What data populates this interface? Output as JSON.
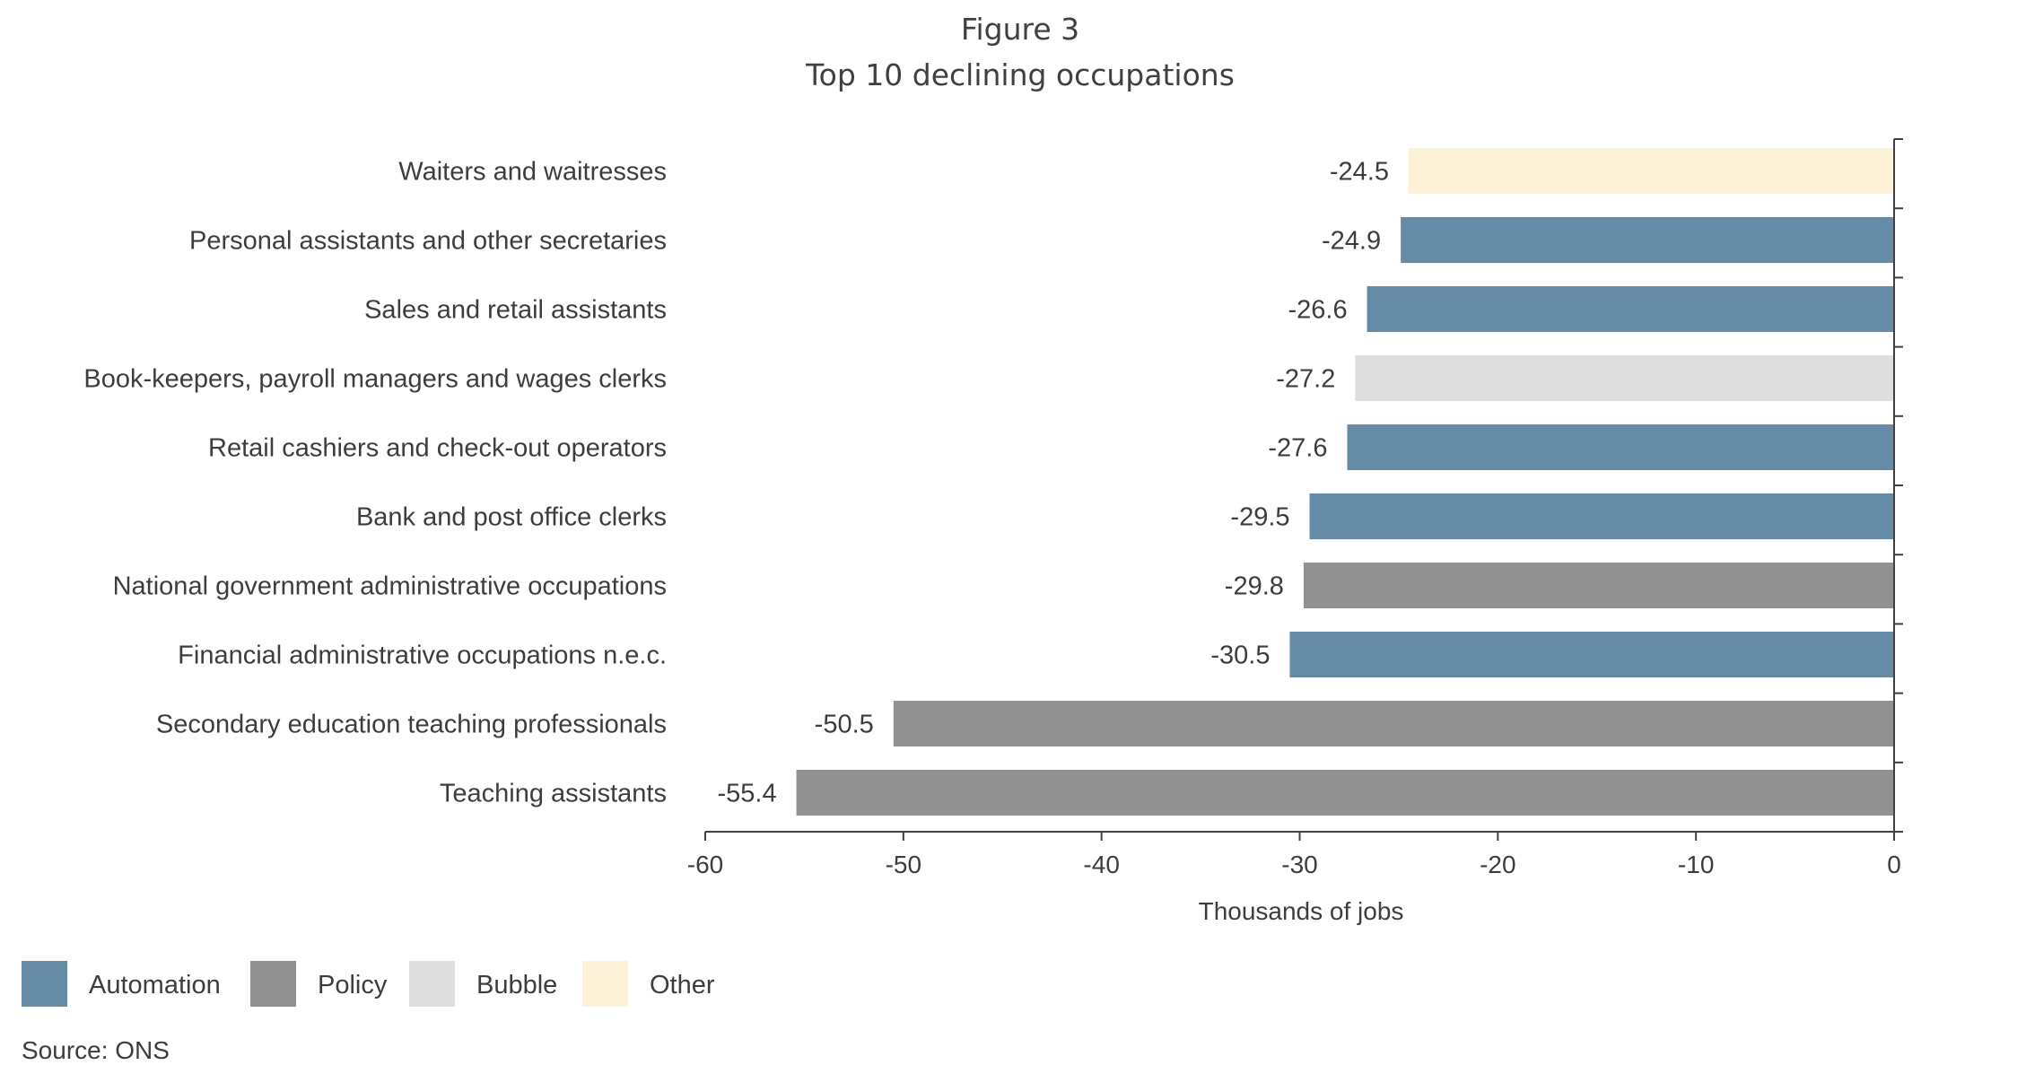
{
  "figure_label": "Figure 3",
  "chart_data": {
    "type": "bar",
    "orientation": "horizontal",
    "title": "Top 10 declining occupations",
    "xlabel": "Thousands of jobs",
    "ylabel": "",
    "xlim": [
      -60,
      0
    ],
    "xticks": [
      -60,
      -50,
      -40,
      -30,
      -20,
      -10,
      0
    ],
    "grid": false,
    "legend_position": "bottom-left",
    "categories": [
      "Waiters and waitresses",
      "Personal assistants and other secretaries",
      "Sales and retail assistants",
      "Book-keepers, payroll managers and wages clerks",
      "Retail cashiers and check-out operators",
      "Bank and post office clerks",
      "National government administrative occupations",
      "Financial administrative occupations n.e.c.",
      "Secondary education teaching professionals",
      "Teaching assistants"
    ],
    "values": [
      -24.5,
      -24.9,
      -26.6,
      -27.2,
      -27.6,
      -29.5,
      -29.8,
      -30.5,
      -50.5,
      -55.4
    ],
    "value_labels": [
      "-24.5",
      "-24.9",
      "-26.6",
      "-27.2",
      "-27.6",
      "-29.5",
      "-29.8",
      "-30.5",
      "-50.5",
      "-55.4"
    ],
    "groups": [
      "Other",
      "Automation",
      "Automation",
      "Bubble",
      "Automation",
      "Automation",
      "Policy",
      "Automation",
      "Policy",
      "Policy"
    ],
    "legend": [
      {
        "name": "Automation",
        "color": "#668ba6"
      },
      {
        "name": "Policy",
        "color": "#919191"
      },
      {
        "name": "Bubble",
        "color": "#dfdede"
      },
      {
        "name": "Other",
        "color": "#fdf1d8"
      }
    ],
    "colors": {
      "axis": "#404040"
    }
  },
  "source": "Source: ONS"
}
